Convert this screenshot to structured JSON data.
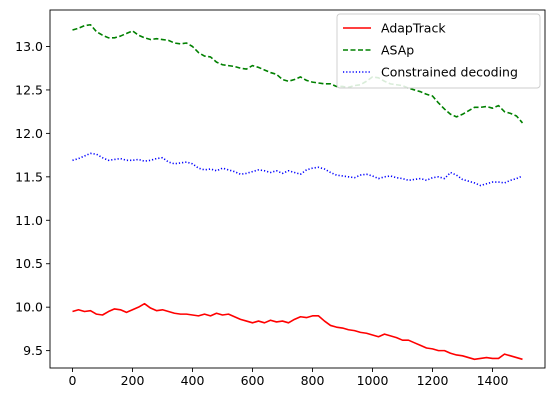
{
  "chart_data": {
    "type": "line",
    "title": "",
    "xlabel": "",
    "ylabel": "",
    "xlim": [
      -75,
      1575
    ],
    "ylim": [
      9.3,
      13.42
    ],
    "xticks": [
      0,
      200,
      400,
      600,
      800,
      1000,
      1200,
      1400
    ],
    "yticks": [
      9.5,
      10.0,
      10.5,
      11.0,
      11.5,
      12.0,
      12.5,
      13.0
    ],
    "ytick_labels": [
      "9.5",
      "10.0",
      "10.5",
      "11.0",
      "11.5",
      "12.0",
      "12.5",
      "13.0"
    ],
    "grid": false,
    "legend_position": "top-right",
    "series": [
      {
        "name": "AdapTrack",
        "color": "#ff0000",
        "style": "solid",
        "x": [
          0,
          20,
          40,
          60,
          80,
          100,
          120,
          140,
          160,
          180,
          200,
          220,
          240,
          260,
          280,
          300,
          320,
          340,
          360,
          380,
          400,
          420,
          440,
          460,
          480,
          500,
          520,
          540,
          560,
          580,
          600,
          620,
          640,
          660,
          680,
          700,
          720,
          740,
          760,
          780,
          800,
          820,
          840,
          860,
          880,
          900,
          920,
          940,
          960,
          980,
          1000,
          1020,
          1040,
          1060,
          1080,
          1100,
          1120,
          1140,
          1160,
          1180,
          1200,
          1220,
          1240,
          1260,
          1280,
          1300,
          1320,
          1340,
          1360,
          1380,
          1400,
          1420,
          1440,
          1460,
          1480,
          1500
        ],
        "y": [
          9.95,
          9.97,
          9.95,
          9.96,
          9.92,
          9.91,
          9.95,
          9.98,
          9.97,
          9.94,
          9.97,
          10.0,
          10.04,
          9.99,
          9.96,
          9.97,
          9.95,
          9.93,
          9.92,
          9.92,
          9.91,
          9.9,
          9.92,
          9.9,
          9.93,
          9.91,
          9.92,
          9.89,
          9.86,
          9.84,
          9.82,
          9.84,
          9.82,
          9.85,
          9.83,
          9.84,
          9.82,
          9.86,
          9.89,
          9.88,
          9.9,
          9.9,
          9.84,
          9.79,
          9.77,
          9.76,
          9.74,
          9.73,
          9.71,
          9.7,
          9.68,
          9.66,
          9.69,
          9.67,
          9.65,
          9.62,
          9.62,
          9.59,
          9.56,
          9.53,
          9.52,
          9.5,
          9.5,
          9.47,
          9.45,
          9.44,
          9.42,
          9.4,
          9.41,
          9.42,
          9.41,
          9.41,
          9.46,
          9.44,
          9.42,
          9.4
        ]
      },
      {
        "name": "ASAp",
        "color": "#008000",
        "style": "dashed",
        "x": [
          0,
          20,
          40,
          60,
          80,
          100,
          120,
          140,
          160,
          180,
          200,
          220,
          240,
          260,
          280,
          300,
          320,
          340,
          360,
          380,
          400,
          420,
          440,
          460,
          480,
          500,
          520,
          540,
          560,
          580,
          600,
          620,
          640,
          660,
          680,
          700,
          720,
          740,
          760,
          780,
          800,
          820,
          840,
          860,
          880,
          900,
          920,
          940,
          960,
          980,
          1000,
          1020,
          1040,
          1060,
          1080,
          1100,
          1120,
          1140,
          1160,
          1180,
          1200,
          1220,
          1240,
          1260,
          1280,
          1300,
          1320,
          1340,
          1360,
          1380,
          1400,
          1420,
          1440,
          1460,
          1480,
          1500
        ],
        "y": [
          13.19,
          13.21,
          13.24,
          13.25,
          13.17,
          13.13,
          13.1,
          13.1,
          13.12,
          13.15,
          13.18,
          13.13,
          13.1,
          13.08,
          13.09,
          13.08,
          13.07,
          13.04,
          13.03,
          13.04,
          13.0,
          12.93,
          12.89,
          12.88,
          12.82,
          12.79,
          12.78,
          12.77,
          12.75,
          12.74,
          12.78,
          12.76,
          12.73,
          12.7,
          12.68,
          12.62,
          12.6,
          12.62,
          12.65,
          12.61,
          12.59,
          12.58,
          12.57,
          12.57,
          12.54,
          12.54,
          12.53,
          12.55,
          12.56,
          12.6,
          12.65,
          12.64,
          12.6,
          12.57,
          12.56,
          12.55,
          12.52,
          12.5,
          12.48,
          12.45,
          12.43,
          12.35,
          12.28,
          12.22,
          12.19,
          12.22,
          12.26,
          12.3,
          12.3,
          12.31,
          12.29,
          12.32,
          12.25,
          12.23,
          12.2,
          12.12
        ]
      },
      {
        "name": "Constrained decoding",
        "color": "#0000ff",
        "style": "dotted",
        "x": [
          0,
          20,
          40,
          60,
          80,
          100,
          120,
          140,
          160,
          180,
          200,
          220,
          240,
          260,
          280,
          300,
          320,
          340,
          360,
          380,
          400,
          420,
          440,
          460,
          480,
          500,
          520,
          540,
          560,
          580,
          600,
          620,
          640,
          660,
          680,
          700,
          720,
          740,
          760,
          780,
          800,
          820,
          840,
          860,
          880,
          900,
          920,
          940,
          960,
          980,
          1000,
          1020,
          1040,
          1060,
          1080,
          1100,
          1120,
          1140,
          1160,
          1180,
          1200,
          1220,
          1240,
          1260,
          1280,
          1300,
          1320,
          1340,
          1360,
          1380,
          1400,
          1420,
          1440,
          1460,
          1480,
          1500
        ],
        "y": [
          11.69,
          11.71,
          11.74,
          11.77,
          11.76,
          11.72,
          11.69,
          11.7,
          11.71,
          11.69,
          11.69,
          11.7,
          11.68,
          11.69,
          11.71,
          11.72,
          11.67,
          11.65,
          11.66,
          11.67,
          11.65,
          11.6,
          11.58,
          11.59,
          11.57,
          11.6,
          11.58,
          11.56,
          11.53,
          11.54,
          11.56,
          11.58,
          11.57,
          11.55,
          11.57,
          11.54,
          11.57,
          11.55,
          11.53,
          11.58,
          11.6,
          11.61,
          11.59,
          11.55,
          11.52,
          11.51,
          11.5,
          11.49,
          11.52,
          11.53,
          11.51,
          11.48,
          11.5,
          11.51,
          11.49,
          11.48,
          11.46,
          11.47,
          11.48,
          11.46,
          11.49,
          11.5,
          11.48,
          11.55,
          11.52,
          11.47,
          11.45,
          11.43,
          11.4,
          11.42,
          11.44,
          11.44,
          11.43,
          11.46,
          11.48,
          11.51
        ]
      }
    ]
  }
}
